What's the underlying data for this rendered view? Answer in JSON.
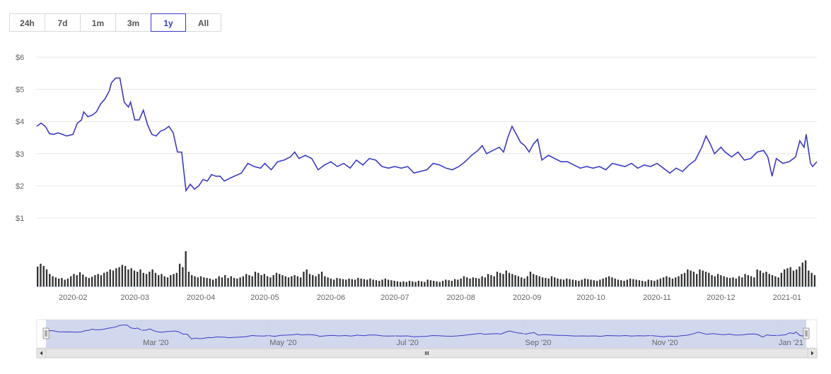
{
  "range_buttons": [
    {
      "label": "24h",
      "active": false
    },
    {
      "label": "7d",
      "active": false
    },
    {
      "label": "1m",
      "active": false
    },
    {
      "label": "3m",
      "active": false
    },
    {
      "label": "1y",
      "active": true
    },
    {
      "label": "All",
      "active": false
    }
  ],
  "colors": {
    "line": "#3b3bc4",
    "volume": "#333333",
    "navigator_fill": "#c9d0ea",
    "grid": "#e6e6e6"
  },
  "chart_data": {
    "type": "line",
    "title": "",
    "xlabel": "",
    "ylabel": "",
    "ylim": [
      1,
      6
    ],
    "y_ticks": [
      "$6",
      "$5",
      "$4",
      "$3",
      "$2",
      "$1"
    ],
    "y_tick_values": [
      6,
      5,
      4,
      3,
      2,
      1
    ],
    "x_ticks": [
      "2020-02",
      "2020-03",
      "2020-04",
      "2020-05",
      "2020-06",
      "2020-07",
      "2020-08",
      "2020-09",
      "2020-10",
      "2020-11",
      "2020-12",
      "2021-01"
    ],
    "navigator_ticks": [
      "Mar '20",
      "May '20",
      "Jul '20",
      "Sep '20",
      "Nov '20",
      "Jan '21"
    ],
    "x_range": [
      "2020-01-15",
      "2021-01-15"
    ],
    "series": [
      {
        "type": "line",
        "points": [
          [
            "2020-01-15",
            3.85
          ],
          [
            "2020-01-17",
            3.95
          ],
          [
            "2020-01-19",
            3.85
          ],
          [
            "2020-01-21",
            3.62
          ],
          [
            "2020-01-23",
            3.6
          ],
          [
            "2020-01-25",
            3.65
          ],
          [
            "2020-01-27",
            3.6
          ],
          [
            "2020-01-29",
            3.55
          ],
          [
            "2020-02-01",
            3.6
          ],
          [
            "2020-02-03",
            3.95
          ],
          [
            "2020-02-05",
            4.05
          ],
          [
            "2020-02-06",
            4.3
          ],
          [
            "2020-02-08",
            4.15
          ],
          [
            "2020-02-10",
            4.2
          ],
          [
            "2020-02-12",
            4.3
          ],
          [
            "2020-02-14",
            4.55
          ],
          [
            "2020-02-16",
            4.7
          ],
          [
            "2020-02-18",
            4.95
          ],
          [
            "2020-02-19",
            5.2
          ],
          [
            "2020-02-21",
            5.35
          ],
          [
            "2020-02-23",
            5.35
          ],
          [
            "2020-02-25",
            4.6
          ],
          [
            "2020-02-27",
            4.45
          ],
          [
            "2020-02-28",
            4.6
          ],
          [
            "2020-03-01",
            4.05
          ],
          [
            "2020-03-03",
            4.05
          ],
          [
            "2020-03-05",
            4.35
          ],
          [
            "2020-03-07",
            3.9
          ],
          [
            "2020-03-09",
            3.6
          ],
          [
            "2020-03-11",
            3.55
          ],
          [
            "2020-03-13",
            3.7
          ],
          [
            "2020-03-15",
            3.75
          ],
          [
            "2020-03-17",
            3.85
          ],
          [
            "2020-03-19",
            3.65
          ],
          [
            "2020-03-21",
            3.05
          ],
          [
            "2020-03-23",
            3.05
          ],
          [
            "2020-03-25",
            1.85
          ],
          [
            "2020-03-27",
            2.05
          ],
          [
            "2020-03-29",
            1.9
          ],
          [
            "2020-03-31",
            2.0
          ],
          [
            "2020-04-02",
            2.2
          ],
          [
            "2020-04-04",
            2.15
          ],
          [
            "2020-04-06",
            2.35
          ],
          [
            "2020-04-08",
            2.3
          ],
          [
            "2020-04-10",
            2.3
          ],
          [
            "2020-04-12",
            2.15
          ],
          [
            "2020-04-15",
            2.25
          ],
          [
            "2020-04-20",
            2.4
          ],
          [
            "2020-04-23",
            2.7
          ],
          [
            "2020-04-26",
            2.6
          ],
          [
            "2020-04-29",
            2.55
          ],
          [
            "2020-05-01",
            2.7
          ],
          [
            "2020-05-04",
            2.5
          ],
          [
            "2020-05-07",
            2.75
          ],
          [
            "2020-05-10",
            2.8
          ],
          [
            "2020-05-13",
            2.9
          ],
          [
            "2020-05-15",
            3.05
          ],
          [
            "2020-05-17",
            2.85
          ],
          [
            "2020-05-20",
            2.95
          ],
          [
            "2020-05-23",
            2.85
          ],
          [
            "2020-05-26",
            2.5
          ],
          [
            "2020-05-29",
            2.65
          ],
          [
            "2020-06-01",
            2.75
          ],
          [
            "2020-06-04",
            2.6
          ],
          [
            "2020-06-07",
            2.7
          ],
          [
            "2020-06-10",
            2.55
          ],
          [
            "2020-06-13",
            2.8
          ],
          [
            "2020-06-16",
            2.65
          ],
          [
            "2020-06-19",
            2.85
          ],
          [
            "2020-06-22",
            2.8
          ],
          [
            "2020-06-25",
            2.6
          ],
          [
            "2020-06-28",
            2.55
          ],
          [
            "2020-07-01",
            2.6
          ],
          [
            "2020-07-04",
            2.55
          ],
          [
            "2020-07-07",
            2.6
          ],
          [
            "2020-07-10",
            2.4
          ],
          [
            "2020-07-13",
            2.45
          ],
          [
            "2020-07-16",
            2.5
          ],
          [
            "2020-07-19",
            2.7
          ],
          [
            "2020-07-22",
            2.65
          ],
          [
            "2020-07-25",
            2.55
          ],
          [
            "2020-07-28",
            2.5
          ],
          [
            "2020-07-31",
            2.6
          ],
          [
            "2020-08-03",
            2.75
          ],
          [
            "2020-08-06",
            2.95
          ],
          [
            "2020-08-09",
            3.1
          ],
          [
            "2020-08-11",
            3.25
          ],
          [
            "2020-08-13",
            3.0
          ],
          [
            "2020-08-16",
            3.1
          ],
          [
            "2020-08-19",
            3.2
          ],
          [
            "2020-08-21",
            3.05
          ],
          [
            "2020-08-23",
            3.5
          ],
          [
            "2020-08-25",
            3.85
          ],
          [
            "2020-08-27",
            3.6
          ],
          [
            "2020-08-29",
            3.35
          ],
          [
            "2020-08-31",
            3.25
          ],
          [
            "2020-09-02",
            3.05
          ],
          [
            "2020-09-04",
            3.3
          ],
          [
            "2020-09-06",
            3.45
          ],
          [
            "2020-09-08",
            2.8
          ],
          [
            "2020-09-11",
            2.95
          ],
          [
            "2020-09-14",
            2.85
          ],
          [
            "2020-09-17",
            2.75
          ],
          [
            "2020-09-20",
            2.75
          ],
          [
            "2020-09-23",
            2.65
          ],
          [
            "2020-09-26",
            2.55
          ],
          [
            "2020-09-29",
            2.6
          ],
          [
            "2020-10-02",
            2.55
          ],
          [
            "2020-10-05",
            2.6
          ],
          [
            "2020-10-08",
            2.5
          ],
          [
            "2020-10-11",
            2.7
          ],
          [
            "2020-10-14",
            2.65
          ],
          [
            "2020-10-17",
            2.6
          ],
          [
            "2020-10-20",
            2.7
          ],
          [
            "2020-10-23",
            2.55
          ],
          [
            "2020-10-26",
            2.65
          ],
          [
            "2020-10-29",
            2.6
          ],
          [
            "2020-11-01",
            2.7
          ],
          [
            "2020-11-04",
            2.55
          ],
          [
            "2020-11-07",
            2.4
          ],
          [
            "2020-11-10",
            2.55
          ],
          [
            "2020-11-13",
            2.45
          ],
          [
            "2020-11-16",
            2.65
          ],
          [
            "2020-11-19",
            2.8
          ],
          [
            "2020-11-22",
            3.2
          ],
          [
            "2020-11-24",
            3.55
          ],
          [
            "2020-11-26",
            3.3
          ],
          [
            "2020-11-28",
            3.0
          ],
          [
            "2020-12-01",
            3.2
          ],
          [
            "2020-12-03",
            3.05
          ],
          [
            "2020-12-06",
            2.9
          ],
          [
            "2020-12-09",
            3.05
          ],
          [
            "2020-12-12",
            2.8
          ],
          [
            "2020-12-15",
            2.85
          ],
          [
            "2020-12-18",
            3.05
          ],
          [
            "2020-12-21",
            3.1
          ],
          [
            "2020-12-23",
            2.9
          ],
          [
            "2020-12-25",
            2.3
          ],
          [
            "2020-12-27",
            2.85
          ],
          [
            "2020-12-30",
            2.7
          ],
          [
            "2021-01-02",
            2.75
          ],
          [
            "2021-01-05",
            2.9
          ],
          [
            "2021-01-07",
            3.4
          ],
          [
            "2021-01-09",
            3.2
          ],
          [
            "2021-01-10",
            3.6
          ],
          [
            "2021-01-12",
            2.7
          ],
          [
            "2021-01-13",
            2.6
          ],
          [
            "2021-01-15",
            2.75
          ]
        ]
      },
      {
        "type": "bar",
        "values": [
          35,
          40,
          36,
          30,
          22,
          18,
          16,
          14,
          15,
          12,
          14,
          18,
          22,
          20,
          25,
          21,
          17,
          15,
          17,
          20,
          22,
          20,
          24,
          26,
          30,
          28,
          32,
          34,
          38,
          36,
          30,
          32,
          28,
          26,
          30,
          24,
          22,
          26,
          30,
          24,
          20,
          22,
          18,
          16,
          20,
          22,
          24,
          40,
          34,
          62,
          26,
          20,
          18,
          16,
          18,
          16,
          15,
          14,
          12,
          14,
          18,
          16,
          20,
          15,
          18,
          15,
          14,
          16,
          18,
          22,
          20,
          18,
          26,
          24,
          20,
          22,
          18,
          16,
          20,
          24,
          22,
          20,
          18,
          16,
          18,
          20,
          18,
          16,
          26,
          30,
          22,
          20,
          18,
          22,
          26,
          18,
          16,
          14,
          12,
          15,
          14,
          13,
          12,
          14,
          13,
          12,
          15,
          14,
          13,
          12,
          14,
          12,
          11,
          10,
          12,
          14,
          12,
          11,
          10,
          9,
          8,
          9,
          8,
          10,
          9,
          8,
          10,
          9,
          8,
          12,
          11,
          10,
          9,
          8,
          10,
          12,
          11,
          10,
          13,
          12,
          14,
          18,
          16,
          14,
          16,
          15,
          14,
          18,
          16,
          22,
          20,
          18,
          26,
          24,
          22,
          28,
          24,
          22,
          20,
          18,
          16,
          14,
          18,
          26,
          22,
          20,
          18,
          16,
          15,
          14,
          18,
          16,
          14,
          13,
          12,
          14,
          13,
          12,
          11,
          10,
          12,
          14,
          13,
          12,
          11,
          10,
          12,
          14,
          16,
          18,
          16,
          14,
          12,
          11,
          10,
          12,
          14,
          13,
          12,
          11,
          10,
          9,
          12,
          11,
          10,
          12,
          14,
          16,
          18,
          16,
          14,
          16,
          18,
          22,
          24,
          30,
          28,
          26,
          22,
          30,
          28,
          26,
          24,
          20,
          18,
          22,
          20,
          18,
          16,
          15,
          16,
          14,
          18,
          16,
          22,
          20,
          18,
          16,
          30,
          28,
          24,
          26,
          22,
          20,
          18,
          16,
          24,
          30,
          32,
          34,
          28,
          30,
          35,
          42,
          46,
          28,
          24,
          20
        ]
      }
    ]
  }
}
